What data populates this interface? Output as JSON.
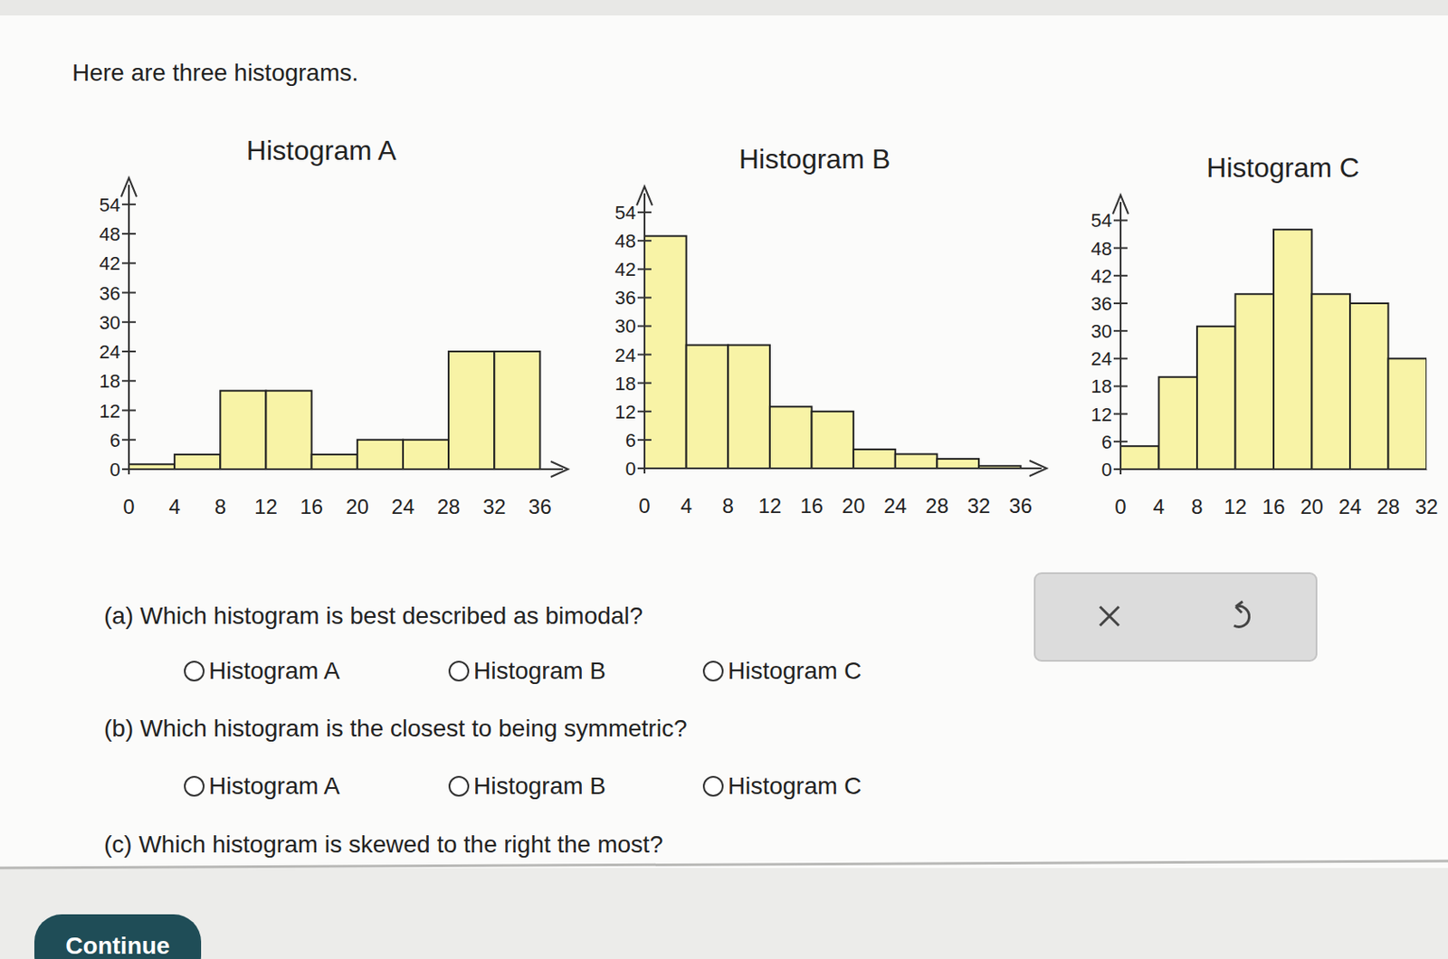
{
  "chart_data": [
    {
      "type": "histogram",
      "title": "Histogram A",
      "color": "#f8f3a6",
      "bins": [
        0,
        4,
        8,
        12,
        16,
        20,
        24,
        28,
        32,
        36
      ],
      "values": [
        1,
        3,
        16,
        16,
        3,
        6,
        6,
        24,
        24
      ],
      "xlim": [
        0,
        38
      ],
      "xticks": [
        0,
        4,
        8,
        12,
        16,
        20,
        24,
        28,
        32,
        36
      ],
      "ylim": [
        0,
        58
      ],
      "yticks": [
        0,
        6,
        12,
        18,
        24,
        30,
        36,
        42,
        48,
        54
      ]
    },
    {
      "type": "histogram",
      "title": "Histogram B",
      "color": "#f8f3a6",
      "bins": [
        0,
        4,
        8,
        12,
        16,
        20,
        24,
        28,
        32,
        36
      ],
      "values": [
        49,
        26,
        26,
        13,
        12,
        4,
        3,
        2,
        0.5
      ],
      "xlim": [
        0,
        38
      ],
      "xticks": [
        0,
        4,
        8,
        12,
        16,
        20,
        24,
        28,
        32,
        36
      ],
      "ylim": [
        0,
        58
      ],
      "yticks": [
        0,
        6,
        12,
        18,
        24,
        30,
        36,
        42,
        48,
        54
      ]
    },
    {
      "type": "histogram",
      "title": "Histogram C",
      "color": "#f8f3a6",
      "bins": [
        0,
        4,
        8,
        12,
        16,
        20,
        24,
        28,
        32
      ],
      "values": [
        5,
        20,
        31,
        38,
        52,
        38,
        36,
        24
      ],
      "xlim": [
        0,
        32
      ],
      "xticks": [
        0,
        4,
        8,
        12,
        16,
        20,
        24,
        28,
        32
      ],
      "ylim": [
        0,
        58
      ],
      "yticks": [
        0,
        6,
        12,
        18,
        24,
        30,
        36,
        42,
        48,
        54
      ]
    }
  ],
  "page": {
    "intro": "Here are three histograms.",
    "questions": [
      {
        "text": "(a) Which histogram is best described as bimodal?",
        "options": [
          "Histogram A",
          "Histogram B",
          "Histogram C"
        ]
      },
      {
        "text": "(b) Which histogram is the closest to being symmetric?",
        "options": [
          "Histogram A",
          "Histogram B",
          "Histogram C"
        ]
      },
      {
        "text": "(c) Which histogram is skewed to the right the most?"
      }
    ],
    "button": "Continue"
  }
}
